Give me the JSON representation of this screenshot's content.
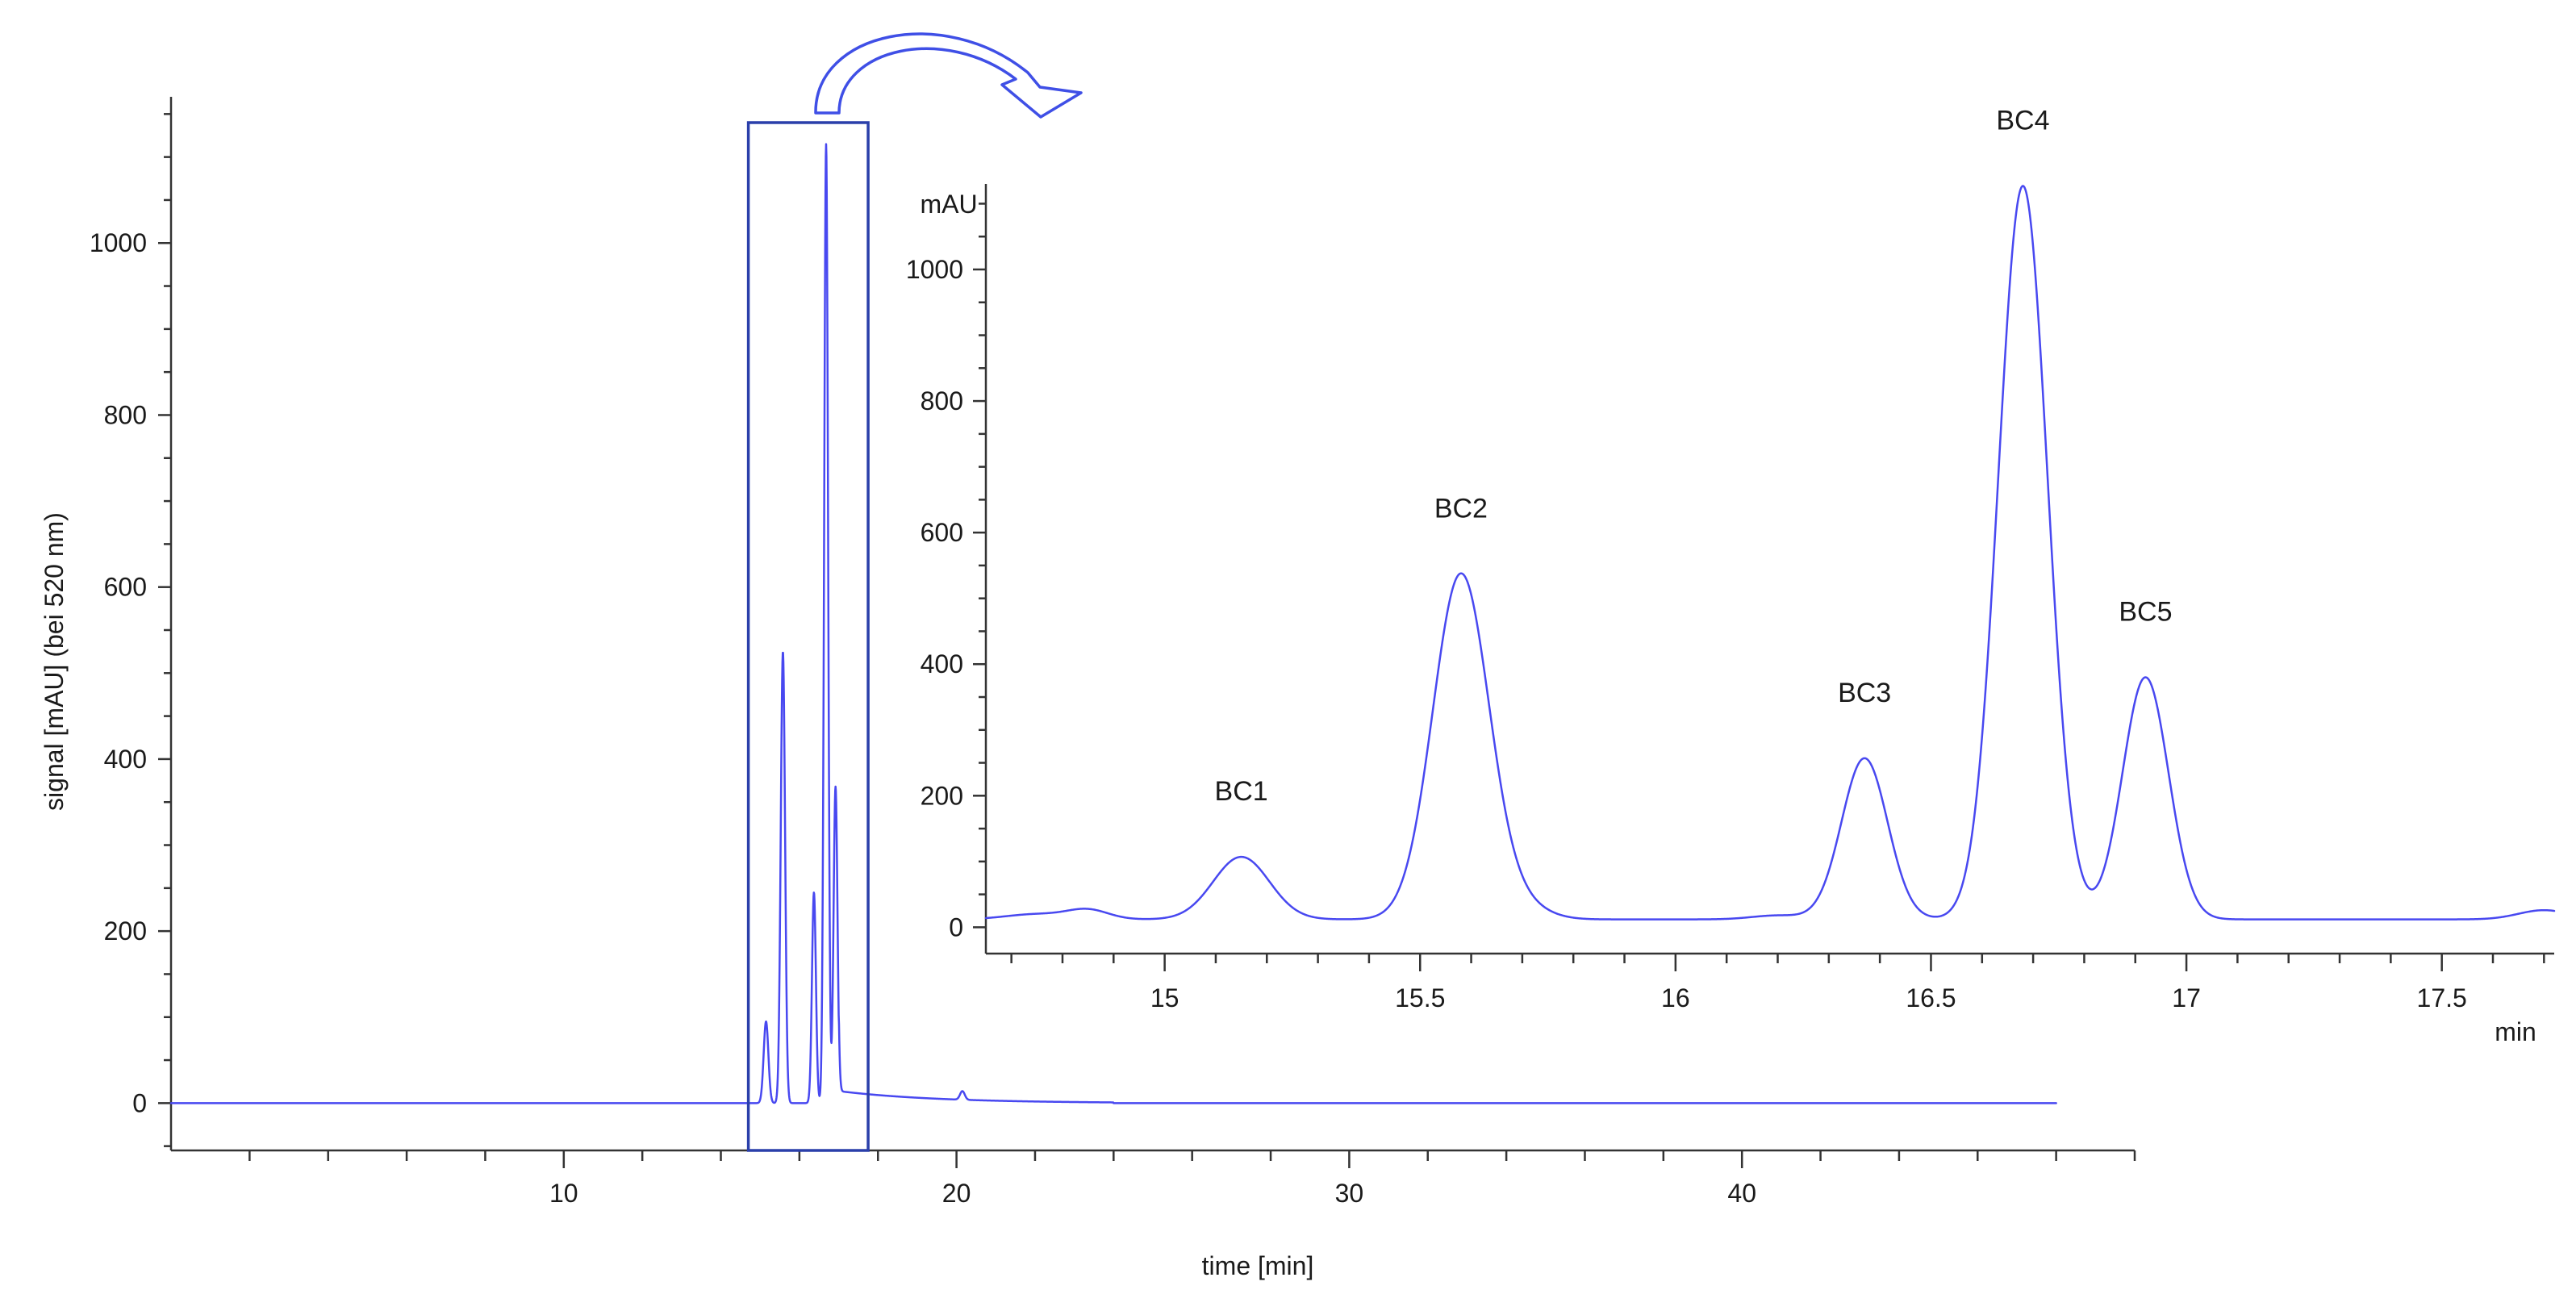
{
  "colors": {
    "trace": "#4848f0",
    "axis": "#333333",
    "highlight_box": "#2a3faa",
    "arrow": "#3f4fe6"
  },
  "chart_data": [
    {
      "type": "line",
      "name": "main",
      "xlabel": "time [min]",
      "ylabel": "signal [mAU] (bei 520 nm)",
      "xlim": [
        0,
        50
      ],
      "ylim": [
        -55,
        1170
      ],
      "x_ticks": [
        10,
        20,
        30,
        40
      ],
      "y_ticks": [
        0,
        200,
        400,
        600,
        800,
        1000
      ],
      "x_minor_step": 2,
      "y_minor_step": 50,
      "grid": false,
      "trace_x_range": [
        0,
        48
      ],
      "baseline": 0,
      "peaks": [
        {
          "x": 15.15,
          "y": 95,
          "w": 0.06
        },
        {
          "x": 15.58,
          "y": 525,
          "w": 0.055
        },
        {
          "x": 16.37,
          "y": 245,
          "w": 0.05
        },
        {
          "x": 16.68,
          "y": 1115,
          "w": 0.05
        },
        {
          "x": 16.92,
          "y": 368,
          "w": 0.05
        }
      ],
      "highlight_region": {
        "x": [
          14.7,
          17.75
        ],
        "y": [
          -55,
          1140
        ]
      }
    },
    {
      "type": "line",
      "name": "inset",
      "ylabel": "mAU",
      "xlabel": "min",
      "xlim": [
        14.65,
        17.72
      ],
      "ylim": [
        -40,
        1130
      ],
      "x_ticks": [
        15,
        15.5,
        16,
        16.5,
        17,
        17.5
      ],
      "x_tick_labels": [
        "15",
        "15.5",
        "16",
        "16.5",
        "17",
        "17.5"
      ],
      "y_ticks": [
        0,
        200,
        400,
        600,
        800,
        1000
      ],
      "x_minor_step": 0.1,
      "y_minor_step": 50,
      "grid": false,
      "baseline": 12,
      "peaks": [
        {
          "label": "BC1",
          "x": 15.15,
          "y": 95,
          "w": 0.055
        },
        {
          "label": "BC2",
          "x": 15.58,
          "y": 525,
          "w": 0.055
        },
        {
          "label": "BC3",
          "x": 16.37,
          "y": 245,
          "w": 0.045
        },
        {
          "label": "BC4",
          "x": 16.68,
          "y": 1115,
          "w": 0.048
        },
        {
          "label": "BC5",
          "x": 16.92,
          "y": 368,
          "w": 0.045
        }
      ]
    }
  ]
}
